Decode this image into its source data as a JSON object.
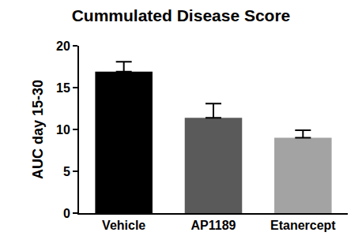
{
  "chart_data": {
    "type": "bar",
    "title": "Cummulated Disease Score",
    "y_label": "AUC day 15-30",
    "categories": [
      "Vehicle",
      "AP1189",
      "Etanercept"
    ],
    "values": [
      16.9,
      11.4,
      9.0
    ],
    "errors": [
      1.2,
      1.7,
      0.9
    ],
    "colors": [
      "#000000",
      "#5a5a5a",
      "#a3a3a3"
    ],
    "ylim": [
      0,
      20
    ],
    "yticks": [
      0,
      5,
      10,
      15,
      20
    ],
    "grid": false
  }
}
